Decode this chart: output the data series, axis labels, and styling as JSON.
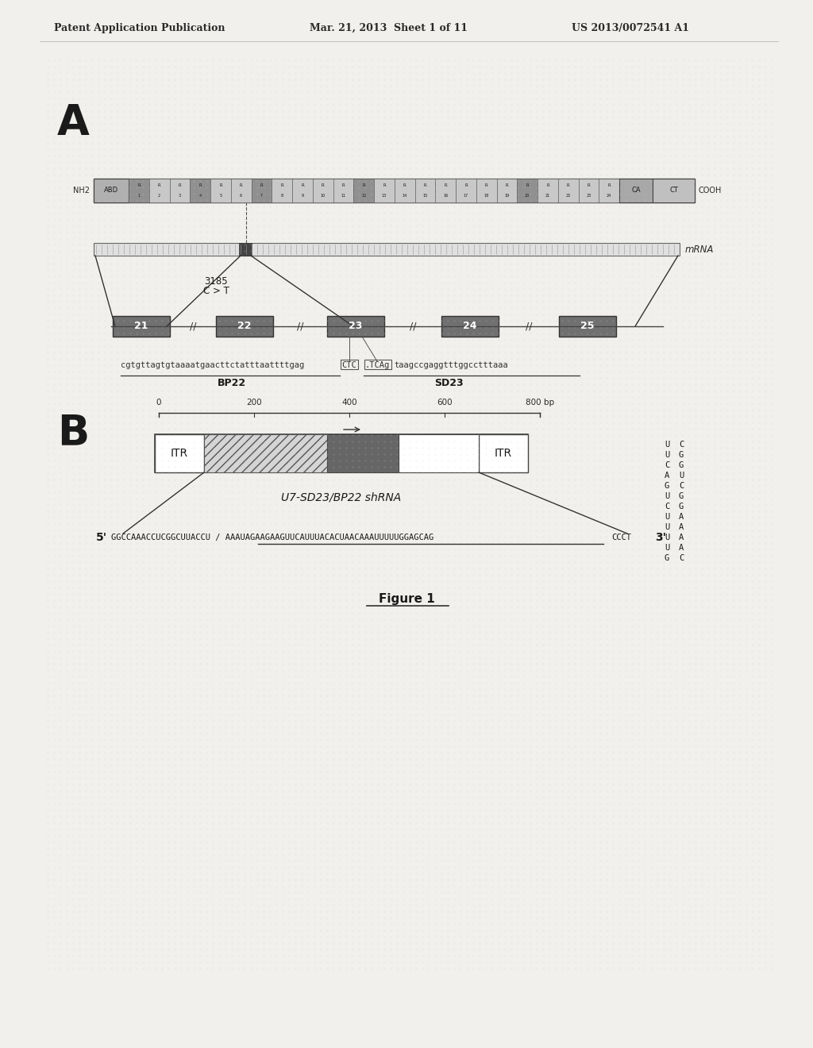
{
  "bg_color": "#f2f0ec",
  "header_left": "Patent Application Publication",
  "header_mid": "Mar. 21, 2013  Sheet 1 of 11",
  "header_right": "US 2013/0072541 A1",
  "label_A": "A",
  "label_B": "B",
  "figure_label": "Figure 1",
  "nh2_label": "NH2",
  "cooh_label": "COOH",
  "mrna_label": "mRNA",
  "mutation_label": "3185\nC > T",
  "bp22_label": "BP22",
  "sd23_label": "SD23",
  "exon_labels": [
    "21",
    "22",
    "23",
    "24",
    "25"
  ],
  "itr_label": "ITR",
  "u7_label": "U7-SD23/BP22 shRNA",
  "scale_labels": [
    "0",
    "200",
    "400",
    "600",
    "800 bp"
  ]
}
